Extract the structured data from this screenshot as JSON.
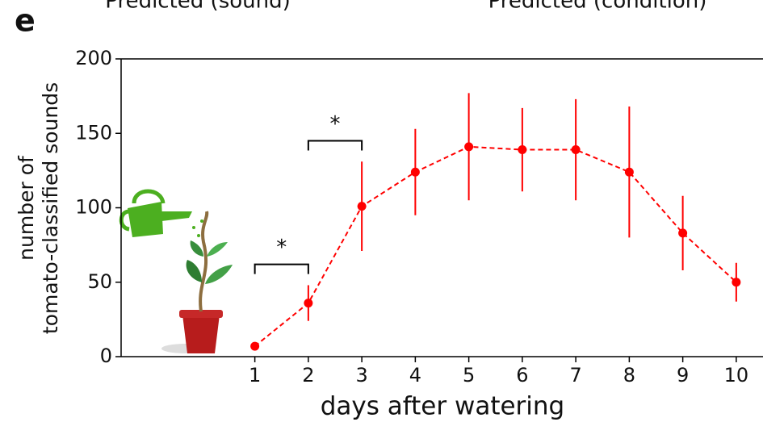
{
  "chart_data": {
    "type": "line",
    "panel_label": "e",
    "cropped_titles": [
      "Predicted (sound)",
      "Predicted (condition)"
    ],
    "xlabel": "days after watering",
    "ylabel": [
      "number of",
      "tomato-classified sounds"
    ],
    "x": [
      1,
      2,
      3,
      4,
      5,
      6,
      7,
      8,
      9,
      10
    ],
    "series": [
      {
        "name": "tomato",
        "color": "#ff0000",
        "values": [
          7,
          36,
          101,
          124,
          141,
          139,
          139,
          124,
          83,
          50
        ],
        "errors": [
          0,
          12,
          30,
          29,
          36,
          28,
          34,
          44,
          25,
          13
        ]
      }
    ],
    "xlim": [
      -1.5,
      10.5
    ],
    "xticks": [
      1,
      2,
      3,
      4,
      5,
      6,
      7,
      8,
      9,
      10
    ],
    "ylim": [
      0,
      200
    ],
    "yticks": [
      0,
      50,
      100,
      150,
      200
    ],
    "annotations": [
      {
        "text": "*",
        "from": 1,
        "to": 2,
        "y": 62
      },
      {
        "text": "*",
        "from": 2,
        "to": 3,
        "y": 145
      }
    ]
  }
}
